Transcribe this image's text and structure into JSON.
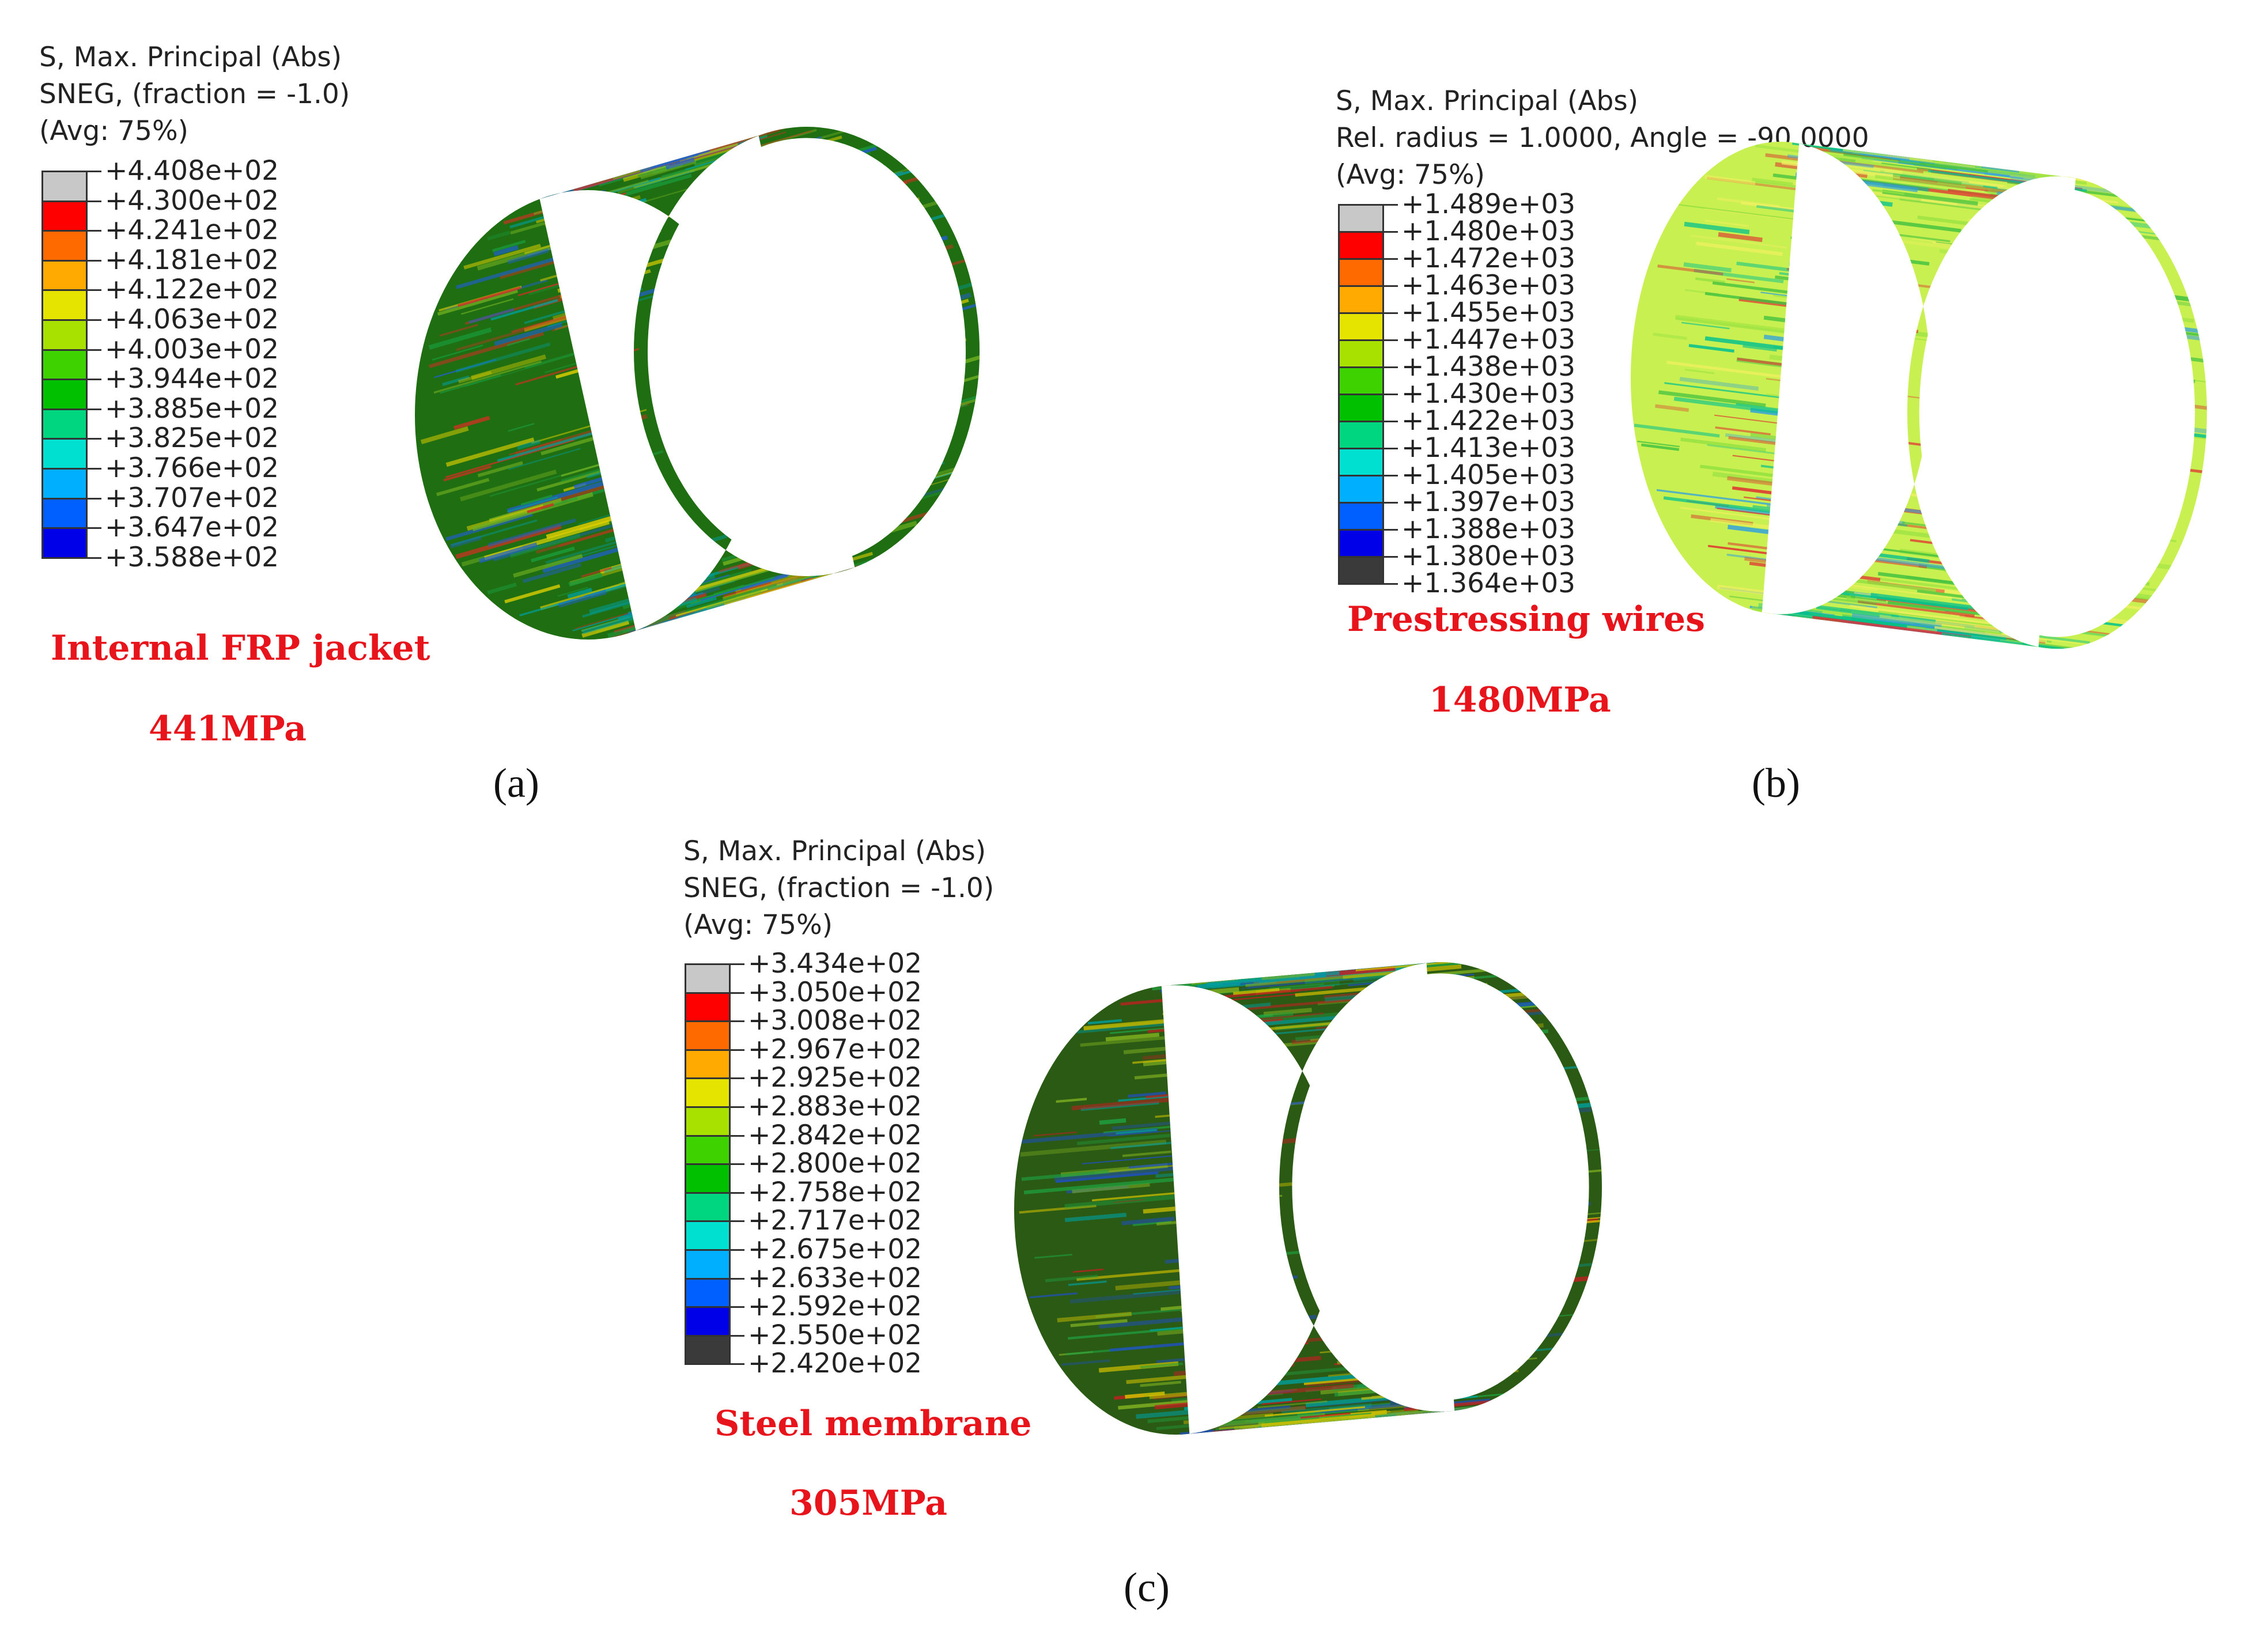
{
  "panels": [
    {
      "id": "a",
      "legend_header": [
        "S, Max. Principal (Abs)",
        "SNEG, (fraction = -1.0)",
        "(Avg: 75%)"
      ],
      "legend_values": [
        "+4.408e+02",
        "+4.300e+02",
        "+4.241e+02",
        "+4.181e+02",
        "+4.122e+02",
        "+4.063e+02",
        "+4.003e+02",
        "+3.944e+02",
        "+3.885e+02",
        "+3.825e+02",
        "+3.766e+02",
        "+3.707e+02",
        "+3.647e+02",
        "+3.588e+02"
      ],
      "legend_colors": [
        "#c8c8c8",
        "#ff0000",
        "#ff6a00",
        "#ffaa00",
        "#e4e400",
        "#a8e000",
        "#3ed200",
        "#00c000",
        "#00d580",
        "#00e0d0",
        "#00b0ff",
        "#0060ff",
        "#0000e8"
      ],
      "component_label": "Internal FRP jacket",
      "value_label": "441MPa",
      "sub_label": "(a)",
      "texture": {
        "base": "#1f6e12",
        "stripes": [
          "#e0d000",
          "#1a9a3a",
          "#d03020",
          "#2060d0",
          "#70b020",
          "#00a0a0"
        ]
      }
    },
    {
      "id": "b",
      "legend_header": [
        "S, Max. Principal (Abs)",
        "Rel. radius = 1.0000, Angle = -90.0000",
        "(Avg: 75%)"
      ],
      "legend_values": [
        "+1.489e+03",
        "+1.480e+03",
        "+1.472e+03",
        "+1.463e+03",
        "+1.455e+03",
        "+1.447e+03",
        "+1.438e+03",
        "+1.430e+03",
        "+1.422e+03",
        "+1.413e+03",
        "+1.405e+03",
        "+1.397e+03",
        "+1.388e+03",
        "+1.380e+03",
        "+1.364e+03"
      ],
      "legend_colors": [
        "#c8c8c8",
        "#ff0000",
        "#ff6a00",
        "#ffaa00",
        "#e4e400",
        "#a8e000",
        "#3ed200",
        "#00c000",
        "#00d580",
        "#00e0d0",
        "#00b0ff",
        "#0060ff",
        "#0000e8",
        "#3a3a3a"
      ],
      "component_label": "Prestressing wires",
      "value_label": "1480MPa",
      "sub_label": "(b)",
      "texture": {
        "base": "#c8f050",
        "stripes": [
          "#f0f060",
          "#40c040",
          "#e03030",
          "#30a0e0",
          "#90e040",
          "#00c090"
        ]
      }
    },
    {
      "id": "c",
      "legend_header": [
        "S, Max. Principal (Abs)",
        "SNEG, (fraction = -1.0)",
        "(Avg: 75%)"
      ],
      "legend_values": [
        "+3.434e+02",
        "+3.050e+02",
        "+3.008e+02",
        "+2.967e+02",
        "+2.925e+02",
        "+2.883e+02",
        "+2.842e+02",
        "+2.800e+02",
        "+2.758e+02",
        "+2.717e+02",
        "+2.675e+02",
        "+2.633e+02",
        "+2.592e+02",
        "+2.550e+02",
        "+2.420e+02"
      ],
      "legend_colors": [
        "#c8c8c8",
        "#ff0000",
        "#ff6a00",
        "#ffaa00",
        "#e4e400",
        "#a8e000",
        "#3ed200",
        "#00c000",
        "#00d580",
        "#00e0d0",
        "#00b0ff",
        "#0060ff",
        "#0000e8",
        "#3a3a3a"
      ],
      "component_label": "Steel membrane",
      "value_label": "305MPa",
      "sub_label": "(c)",
      "texture": {
        "base": "#2a5a14",
        "stripes": [
          "#d0c000",
          "#c02020",
          "#20a040",
          "#2050c0",
          "#80b020",
          "#00a0a0"
        ]
      }
    }
  ]
}
